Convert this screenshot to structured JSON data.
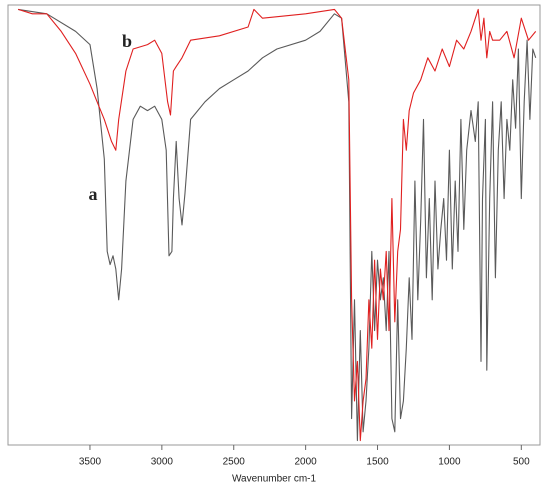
{
  "chart_data": {
    "type": "line",
    "x_label": "Wavenumber cm-1",
    "xlim": [
      4070,
      370
    ],
    "ylim": [
      0,
      100
    ],
    "xticks": [
      3500,
      3000,
      2500,
      2000,
      1500,
      1000,
      500
    ],
    "series": [
      {
        "name": "a",
        "color": "#5a5a5a",
        "x": [
          4000,
          3800,
          3600,
          3500,
          3450,
          3400,
          3380,
          3360,
          3340,
          3320,
          3300,
          3280,
          3250,
          3200,
          3150,
          3100,
          3050,
          3000,
          2970,
          2950,
          2930,
          2920,
          2900,
          2880,
          2860,
          2840,
          2800,
          2700,
          2600,
          2500,
          2400,
          2300,
          2200,
          2000,
          1900,
          1800,
          1750,
          1700,
          1680,
          1660,
          1640,
          1620,
          1600,
          1580,
          1560,
          1540,
          1520,
          1500,
          1480,
          1460,
          1440,
          1420,
          1400,
          1380,
          1360,
          1340,
          1320,
          1300,
          1280,
          1260,
          1240,
          1220,
          1200,
          1180,
          1160,
          1140,
          1120,
          1100,
          1080,
          1060,
          1040,
          1020,
          1000,
          980,
          960,
          940,
          920,
          900,
          880,
          850,
          820,
          800,
          780,
          770,
          750,
          740,
          720,
          700,
          680,
          660,
          640,
          620,
          600,
          580,
          560,
          540,
          520,
          500,
          480,
          460,
          440,
          420,
          400
        ],
        "values": [
          99,
          98,
          94,
          91,
          81,
          65,
          44,
          41,
          43,
          40,
          33,
          40,
          60,
          74,
          77,
          76,
          77,
          74,
          67,
          43,
          44,
          56,
          69,
          56,
          50,
          57,
          74,
          78,
          81,
          83,
          85,
          88,
          90,
          92,
          94,
          98,
          97,
          78,
          6,
          33,
          1,
          26,
          3,
          10,
          22,
          44,
          26,
          42,
          33,
          38,
          26,
          44,
          6,
          3,
          33,
          6,
          10,
          22,
          38,
          24,
          60,
          33,
          51,
          74,
          38,
          56,
          33,
          60,
          40,
          49,
          56,
          42,
          67,
          40,
          60,
          44,
          74,
          49,
          67,
          76,
          69,
          78,
          19,
          56,
          74,
          17,
          56,
          78,
          38,
          67,
          78,
          56,
          74,
          67,
          83,
          72,
          90,
          56,
          78,
          92,
          74,
          90,
          88
        ]
      },
      {
        "name": "b",
        "color": "#e02020",
        "x": [
          4000,
          3900,
          3800,
          3700,
          3600,
          3500,
          3450,
          3400,
          3350,
          3320,
          3300,
          3250,
          3200,
          3100,
          3050,
          3000,
          2960,
          2940,
          2920,
          2900,
          2860,
          2800,
          2600,
          2400,
          2360,
          2300,
          2000,
          1800,
          1750,
          1700,
          1680,
          1660,
          1640,
          1620,
          1600,
          1580,
          1560,
          1540,
          1520,
          1500,
          1480,
          1460,
          1440,
          1420,
          1400,
          1380,
          1360,
          1340,
          1320,
          1300,
          1280,
          1250,
          1200,
          1150,
          1100,
          1050,
          1000,
          950,
          900,
          850,
          800,
          780,
          760,
          740,
          720,
          700,
          650,
          600,
          550,
          500,
          450,
          400
        ],
        "values": [
          99,
          98,
          98,
          94,
          89,
          82,
          78,
          74,
          69,
          67,
          74,
          85,
          90,
          91,
          92,
          89,
          78,
          75,
          85,
          86,
          88,
          92,
          93,
          95,
          99,
          97,
          98,
          99,
          97,
          83,
          33,
          10,
          19,
          1,
          10,
          15,
          33,
          22,
          42,
          24,
          40,
          33,
          44,
          26,
          56,
          28,
          44,
          49,
          74,
          67,
          76,
          80,
          83,
          88,
          85,
          90,
          86,
          92,
          90,
          94,
          99,
          92,
          97,
          88,
          94,
          92,
          92,
          94,
          88,
          97,
          92,
          94
        ]
      }
    ]
  }
}
